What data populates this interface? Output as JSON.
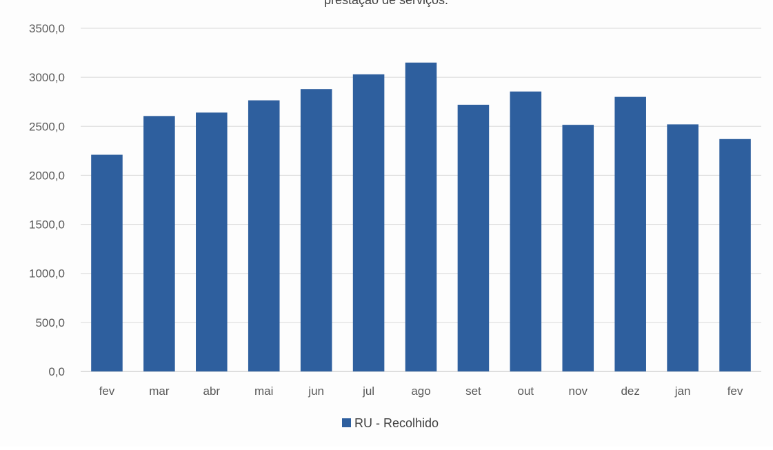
{
  "chart_data": {
    "type": "bar",
    "title": "prestação de serviços.",
    "xlabel": "",
    "ylabel": "",
    "categories": [
      "fev",
      "mar",
      "abr",
      "mai",
      "jun",
      "jul",
      "ago",
      "set",
      "out",
      "nov",
      "dez",
      "jan",
      "fev"
    ],
    "series": [
      {
        "name": "RU - Recolhido",
        "values": [
          2210,
          2605,
          2640,
          2765,
          2880,
          3030,
          3150,
          2720,
          2855,
          2515,
          2800,
          2520,
          2370
        ]
      }
    ],
    "ylim": [
      0,
      3500
    ],
    "yticks": [
      "0,0",
      "500,0",
      "1000,0",
      "1500,0",
      "2000,0",
      "2500,0",
      "3000,0",
      "3500,0"
    ],
    "ytick_values": [
      0,
      500,
      1000,
      1500,
      2000,
      2500,
      3000,
      3500
    ],
    "grid": true,
    "legend_position": "bottom",
    "colors": {
      "bar": "#2e5f9e",
      "grid": "#d9d9d9",
      "axis": "#bfbfbf"
    }
  }
}
